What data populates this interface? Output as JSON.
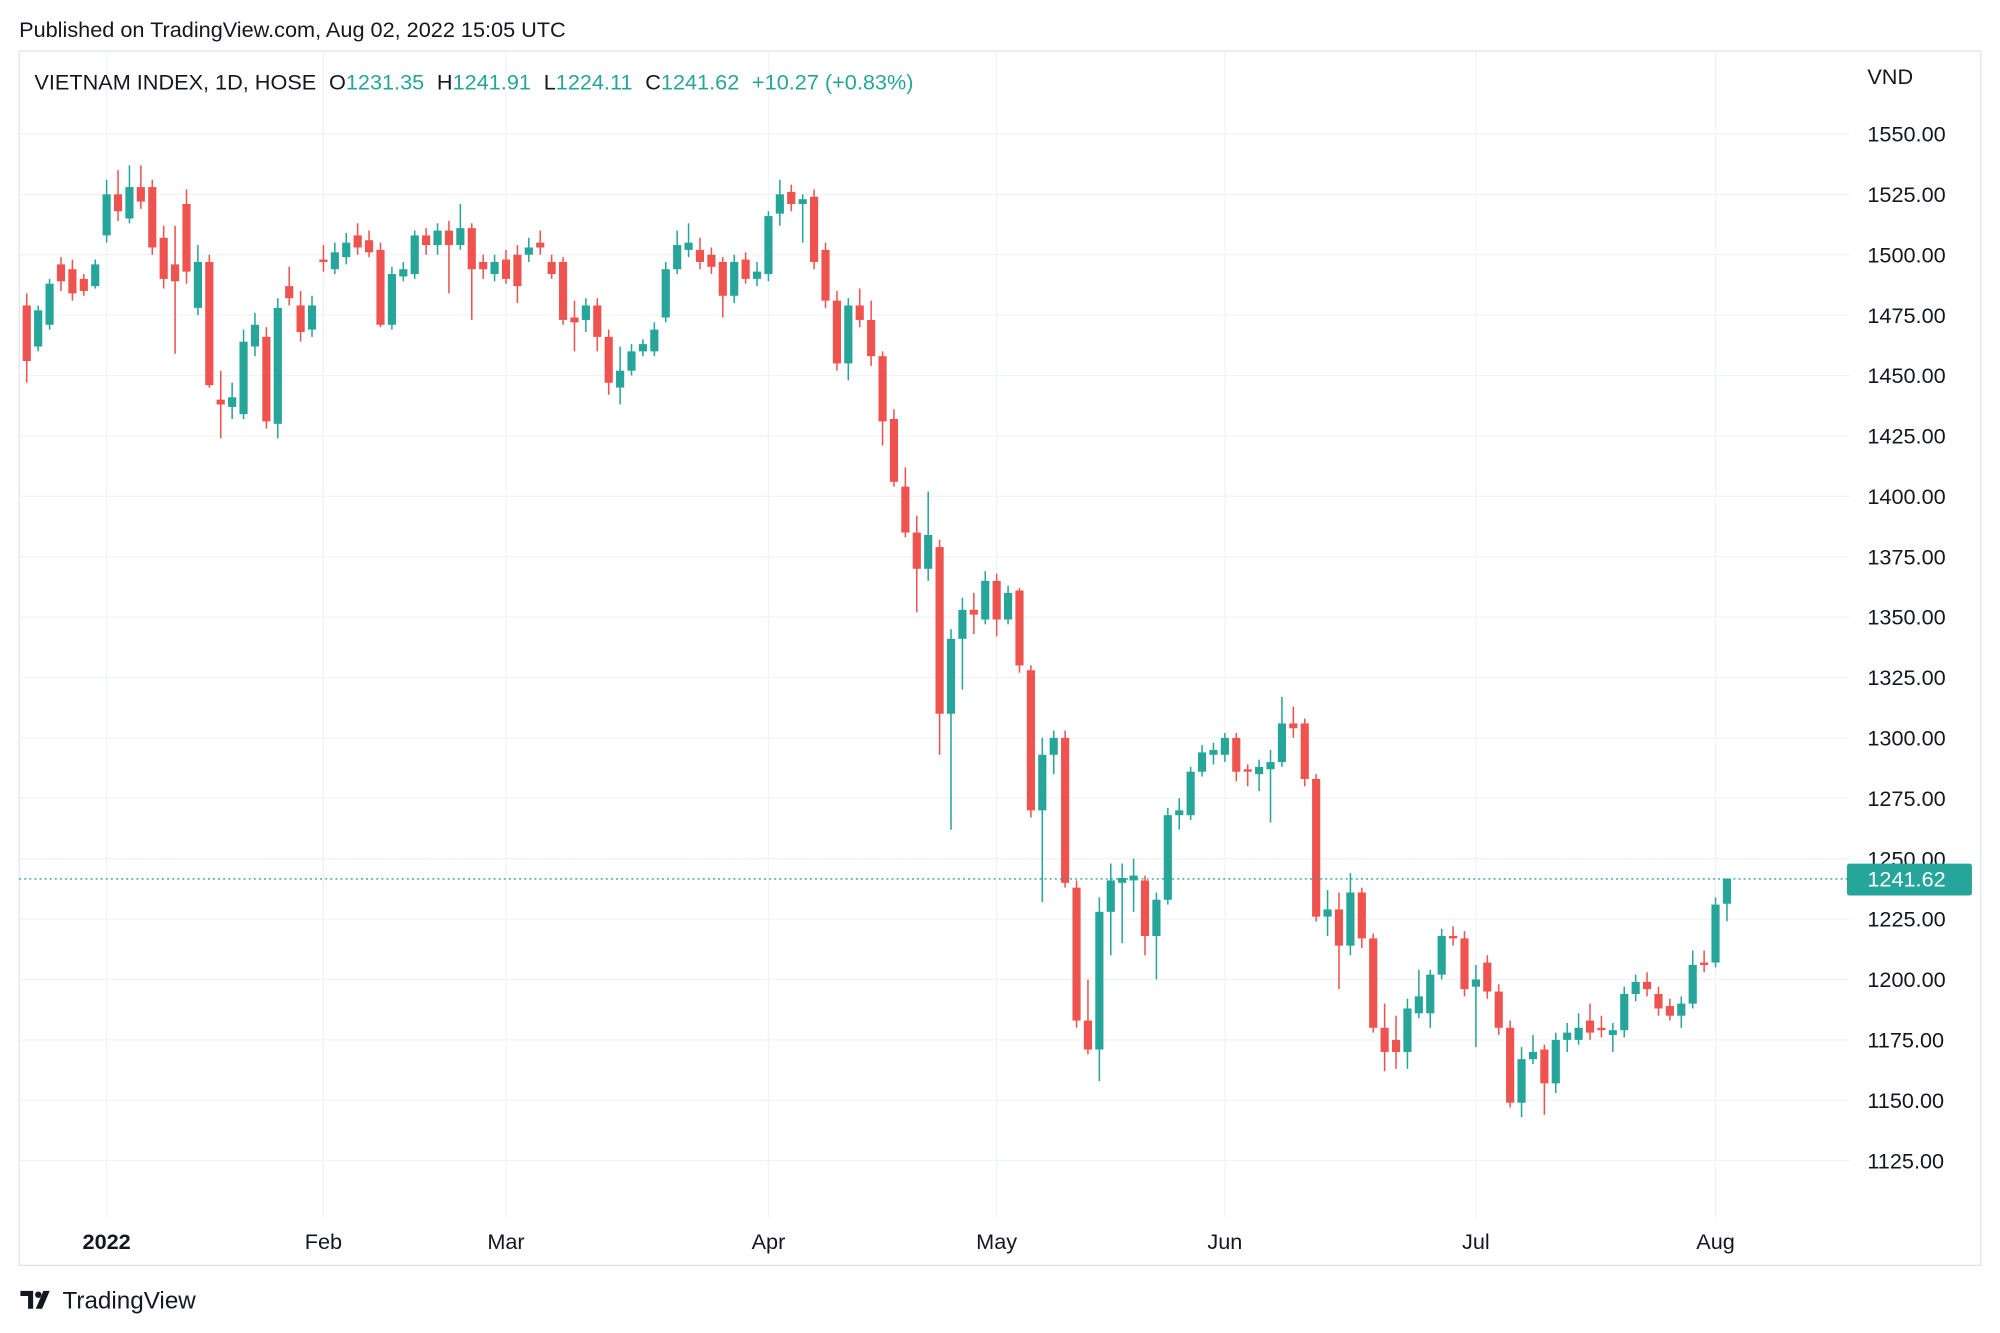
{
  "published": "Published on TradingView.com, Aug 02, 2022 15:05 UTC",
  "branding": "TradingView",
  "chart_data": {
    "type": "candlestick",
    "symbol": "VIETNAM INDEX, 1D, HOSE",
    "legend": [
      {
        "label": "O",
        "value": 1231.35
      },
      {
        "label": "H",
        "value": 1241.91
      },
      {
        "label": "L",
        "value": 1224.11
      },
      {
        "label": "C",
        "value": 1241.62
      }
    ],
    "change": "+10.27 (+0.83%)",
    "currency": "VND",
    "last_price": 1241.62,
    "up_color": "#26a69a",
    "down_color": "#ef5350",
    "grid": true,
    "ylim": [
      1101.2,
      1584.3
    ],
    "yticks": [
      {
        "value": 1125,
        "label": "1125.00"
      },
      {
        "value": 1150,
        "label": "1150.00"
      },
      {
        "value": 1175,
        "label": "1175.00"
      },
      {
        "value": 1200,
        "label": "1200.00"
      },
      {
        "value": 1225,
        "label": "1225.00"
      },
      {
        "value": 1250,
        "label": "1250.00"
      },
      {
        "value": 1275,
        "label": "1275.00"
      },
      {
        "value": 1300,
        "label": "1300.00"
      },
      {
        "value": 1325,
        "label": "1325.00"
      },
      {
        "value": 1350,
        "label": "1350.00"
      },
      {
        "value": 1375,
        "label": "1375.00"
      },
      {
        "value": 1400,
        "label": "1400.00"
      },
      {
        "value": 1425,
        "label": "1425.00"
      },
      {
        "value": 1450,
        "label": "1450.00"
      },
      {
        "value": 1475,
        "label": "1475.00"
      },
      {
        "value": 1500,
        "label": "1500.00"
      },
      {
        "value": 1525,
        "label": "1525.00"
      },
      {
        "value": 1550,
        "label": "1550.00"
      }
    ],
    "categories": [
      null,
      null,
      null,
      null,
      null,
      null,
      null,
      "2022",
      null,
      null,
      null,
      null,
      null,
      null,
      null,
      null,
      null,
      null,
      null,
      null,
      null,
      null,
      null,
      null,
      null,
      null,
      "Feb",
      null,
      null,
      null,
      null,
      null,
      null,
      null,
      null,
      null,
      null,
      null,
      null,
      null,
      null,
      null,
      "Mar",
      null,
      null,
      null,
      null,
      null,
      null,
      null,
      null,
      null,
      null,
      null,
      null,
      null,
      null,
      null,
      null,
      null,
      null,
      null,
      null,
      null,
      null,
      "Apr",
      null,
      null,
      null,
      null,
      null,
      null,
      null,
      null,
      null,
      null,
      null,
      null,
      null,
      null,
      null,
      null,
      null,
      null,
      null,
      "May",
      null,
      null,
      null,
      null,
      null,
      null,
      null,
      null,
      null,
      null,
      null,
      null,
      null,
      null,
      null,
      null,
      null,
      null,
      null,
      "Jun",
      null,
      null,
      null,
      null,
      null,
      null,
      null,
      null,
      null,
      null,
      null,
      null,
      null,
      null,
      null,
      null,
      null,
      null,
      null,
      null,
      null,
      "Jul",
      null,
      null,
      null,
      null,
      null,
      null,
      null,
      null,
      null,
      null,
      null,
      null,
      null,
      null,
      null,
      null,
      null,
      null,
      null,
      null,
      "Aug",
      null
    ],
    "candles": [
      [
        1479,
        1484,
        1447,
        1456
      ],
      [
        1462,
        1479,
        1460,
        1477
      ],
      [
        1471,
        1490,
        1469,
        1488
      ],
      [
        1496,
        1499,
        1485,
        1489
      ],
      [
        1494,
        1498,
        1481,
        1484
      ],
      [
        1490,
        1492,
        1483,
        1485
      ],
      [
        1487,
        1498,
        1486,
        1496
      ],
      [
        1508,
        1531,
        1505,
        1525
      ],
      [
        1525,
        1535,
        1514,
        1518
      ],
      [
        1515,
        1537,
        1513,
        1528
      ],
      [
        1528,
        1537,
        1519,
        1522
      ],
      [
        1528,
        1531,
        1500,
        1503
      ],
      [
        1507,
        1512,
        1486,
        1490
      ],
      [
        1496,
        1512,
        1459,
        1489
      ],
      [
        1521,
        1527,
        1488,
        1493
      ],
      [
        1478,
        1504,
        1475,
        1497
      ],
      [
        1497,
        1500,
        1445,
        1446
      ],
      [
        1440,
        1452,
        1424,
        1438
      ],
      [
        1437,
        1447,
        1432,
        1441
      ],
      [
        1434,
        1469,
        1432,
        1464
      ],
      [
        1462,
        1476,
        1458,
        1471
      ],
      [
        1466,
        1470,
        1428,
        1431
      ],
      [
        1430,
        1482,
        1424,
        1478
      ],
      [
        1487,
        1495,
        1479,
        1482
      ],
      [
        1479,
        1485,
        1464,
        1468
      ],
      [
        1469,
        1483,
        1466,
        1479
      ],
      [
        1498,
        1504,
        1493,
        1497
      ],
      [
        1494,
        1505,
        1492,
        1501
      ],
      [
        1499,
        1509,
        1496,
        1505
      ],
      [
        1508,
        1513,
        1500,
        1503
      ],
      [
        1506,
        1510,
        1499,
        1501
      ],
      [
        1502,
        1505,
        1470,
        1471
      ],
      [
        1471,
        1495,
        1469,
        1492
      ],
      [
        1491,
        1497,
        1489,
        1494
      ],
      [
        1492,
        1510,
        1490,
        1508
      ],
      [
        1508,
        1511,
        1500,
        1504
      ],
      [
        1504,
        1513,
        1500,
        1510
      ],
      [
        1510,
        1514,
        1484,
        1504
      ],
      [
        1504,
        1521,
        1502,
        1511
      ],
      [
        1511,
        1513,
        1473,
        1494
      ],
      [
        1497,
        1500,
        1490,
        1494
      ],
      [
        1492,
        1500,
        1489,
        1497
      ],
      [
        1498,
        1502,
        1488,
        1490
      ],
      [
        1500,
        1504,
        1480,
        1487
      ],
      [
        1500,
        1507,
        1497,
        1503
      ],
      [
        1505,
        1510,
        1500,
        1503
      ],
      [
        1497,
        1500,
        1490,
        1492
      ],
      [
        1497,
        1499,
        1471,
        1473
      ],
      [
        1474,
        1481,
        1460,
        1472
      ],
      [
        1473,
        1482,
        1468,
        1479
      ],
      [
        1479,
        1482,
        1460,
        1466
      ],
      [
        1466,
        1469,
        1442,
        1447
      ],
      [
        1445,
        1462,
        1438,
        1452
      ],
      [
        1452,
        1463,
        1450,
        1460
      ],
      [
        1460,
        1465,
        1458,
        1463
      ],
      [
        1460,
        1472,
        1458,
        1469
      ],
      [
        1474,
        1497,
        1472,
        1494
      ],
      [
        1494,
        1510,
        1492,
        1504
      ],
      [
        1502,
        1513,
        1499,
        1505
      ],
      [
        1502,
        1507,
        1494,
        1497
      ],
      [
        1500,
        1503,
        1492,
        1495
      ],
      [
        1497,
        1499,
        1474,
        1483
      ],
      [
        1483,
        1500,
        1480,
        1497
      ],
      [
        1498,
        1501,
        1488,
        1490
      ],
      [
        1490,
        1497,
        1487,
        1493
      ],
      [
        1492,
        1518,
        1489,
        1516
      ],
      [
        1517,
        1531,
        1512,
        1525
      ],
      [
        1526,
        1529,
        1518,
        1521
      ],
      [
        1521,
        1525,
        1505,
        1523
      ],
      [
        1524,
        1527,
        1494,
        1497
      ],
      [
        1502,
        1505,
        1478,
        1481
      ],
      [
        1481,
        1485,
        1452,
        1455
      ],
      [
        1455,
        1482,
        1448,
        1479
      ],
      [
        1479,
        1486,
        1470,
        1473
      ],
      [
        1473,
        1481,
        1454,
        1458
      ],
      [
        1458,
        1460,
        1421,
        1431
      ],
      [
        1432,
        1436,
        1404,
        1406
      ],
      [
        1404,
        1412,
        1383,
        1385
      ],
      [
        1385,
        1392,
        1352,
        1370
      ],
      [
        1370,
        1402,
        1365,
        1384
      ],
      [
        1379,
        1382,
        1293,
        1310
      ],
      [
        1310,
        1345,
        1262,
        1341
      ],
      [
        1341,
        1358,
        1320,
        1353
      ],
      [
        1353,
        1360,
        1343,
        1351
      ],
      [
        1349,
        1369,
        1347,
        1365
      ],
      [
        1365,
        1368,
        1342,
        1349
      ],
      [
        1349,
        1363,
        1347,
        1360
      ],
      [
        1361,
        1362,
        1327,
        1330
      ],
      [
        1328,
        1330,
        1267,
        1270
      ],
      [
        1270,
        1300,
        1232,
        1293
      ],
      [
        1293,
        1303,
        1285,
        1300
      ],
      [
        1300,
        1303,
        1238,
        1240
      ],
      [
        1238,
        1241,
        1180,
        1183
      ],
      [
        1183,
        1200,
        1169,
        1171
      ],
      [
        1171,
        1234,
        1158,
        1228
      ],
      [
        1228,
        1248,
        1210,
        1241
      ],
      [
        1240,
        1248,
        1215,
        1242
      ],
      [
        1241,
        1250,
        1228,
        1243
      ],
      [
        1241,
        1243,
        1210,
        1218
      ],
      [
        1218,
        1236,
        1200,
        1233
      ],
      [
        1233,
        1271,
        1231,
        1268
      ],
      [
        1268,
        1275,
        1262,
        1270
      ],
      [
        1268,
        1288,
        1266,
        1286
      ],
      [
        1286,
        1297,
        1284,
        1294
      ],
      [
        1293,
        1298,
        1289,
        1295
      ],
      [
        1293,
        1302,
        1290,
        1300
      ],
      [
        1300,
        1302,
        1282,
        1286
      ],
      [
        1287,
        1289,
        1280,
        1286
      ],
      [
        1285,
        1291,
        1278,
        1288
      ],
      [
        1287,
        1295,
        1265,
        1290
      ],
      [
        1290,
        1317,
        1288,
        1306
      ],
      [
        1306,
        1313,
        1300,
        1304
      ],
      [
        1306,
        1308,
        1280,
        1283
      ],
      [
        1283,
        1285,
        1224,
        1226
      ],
      [
        1226,
        1237,
        1218,
        1229
      ],
      [
        1229,
        1236,
        1196,
        1214
      ],
      [
        1214,
        1244,
        1210,
        1236
      ],
      [
        1236,
        1238,
        1213,
        1217
      ],
      [
        1217,
        1219,
        1178,
        1180
      ],
      [
        1180,
        1190,
        1162,
        1170
      ],
      [
        1175,
        1185,
        1163,
        1170
      ],
      [
        1170,
        1192,
        1163,
        1188
      ],
      [
        1186,
        1204,
        1184,
        1193
      ],
      [
        1186,
        1204,
        1180,
        1202
      ],
      [
        1202,
        1221,
        1200,
        1218
      ],
      [
        1218,
        1222,
        1214,
        1217
      ],
      [
        1217,
        1220,
        1193,
        1196
      ],
      [
        1197,
        1206,
        1172,
        1200
      ],
      [
        1207,
        1210,
        1192,
        1195
      ],
      [
        1195,
        1198,
        1177,
        1180
      ],
      [
        1180,
        1183,
        1147,
        1149
      ],
      [
        1149,
        1172,
        1143,
        1167
      ],
      [
        1167,
        1177,
        1165,
        1170
      ],
      [
        1171,
        1173,
        1144,
        1157
      ],
      [
        1157,
        1178,
        1153,
        1175
      ],
      [
        1175,
        1182,
        1170,
        1178
      ],
      [
        1175,
        1186,
        1173,
        1180
      ],
      [
        1183,
        1190,
        1175,
        1178
      ],
      [
        1180,
        1185,
        1176,
        1179
      ],
      [
        1177,
        1182,
        1170,
        1179
      ],
      [
        1179,
        1197,
        1176,
        1194
      ],
      [
        1194,
        1202,
        1191,
        1199
      ],
      [
        1199,
        1203,
        1193,
        1196
      ],
      [
        1194,
        1197,
        1185,
        1188
      ],
      [
        1189,
        1192,
        1183,
        1185
      ],
      [
        1185,
        1193,
        1180,
        1190
      ],
      [
        1190,
        1212,
        1188,
        1206
      ],
      [
        1207,
        1212,
        1203,
        1206
      ],
      [
        1207,
        1234,
        1205,
        1231
      ],
      [
        1231.35,
        1241.91,
        1224.11,
        1241.62
      ]
    ]
  }
}
